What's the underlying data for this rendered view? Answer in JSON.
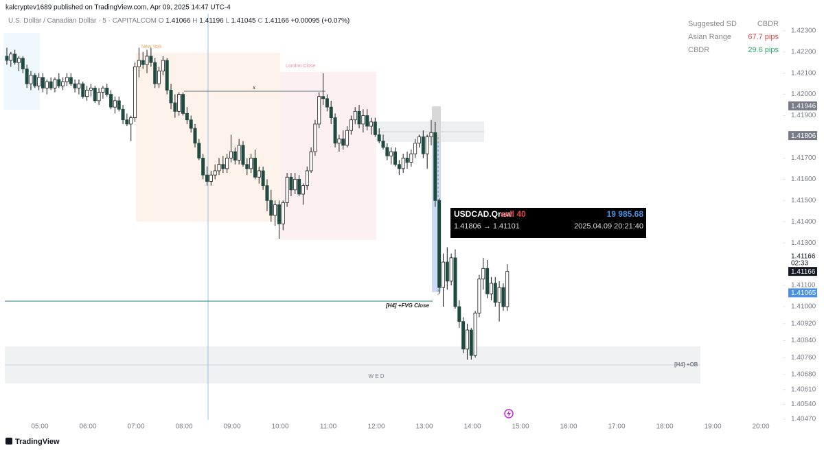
{
  "header": {
    "publisher": "kalcryptev1689 published on TradingView.com, Apr 09, 2025 14:47 UTC-4",
    "symbol": "U.S. Dollar / Canadian Dollar · 5 · CAPITALCOM",
    "ohlc": [
      [
        "O",
        "1.41066"
      ],
      [
        "H",
        "1.41196"
      ],
      [
        "L",
        "1.41045"
      ],
      [
        "C",
        "1.41166"
      ]
    ],
    "change": "+0.00095 (+0.07%)"
  },
  "table": {
    "rows": [
      [
        "Suggested SD",
        "CBDR"
      ],
      [
        "Asian Range",
        "67.7 pips"
      ],
      [
        "CBDR",
        "29.6 pips"
      ]
    ]
  },
  "sessions": [
    "New York",
    "London Close"
  ],
  "annotations": {
    "level": "x",
    "fvg": "[H4] +FVG Close",
    "ob": "[H4] +OB",
    "day": "W E D"
  },
  "trade": {
    "symbol": "USDCAD.Qraw",
    "side": "sell 40",
    "profit": "19 985.68",
    "prices": "1.41806 → 1.41101",
    "time": "2025.04.09 20:21:40"
  },
  "footer": "TradingView",
  "chart_data": {
    "type": "candlestick",
    "bull_color": "#ffffff",
    "bear_color": "#1f4a42",
    "ylim": [
      1.4047,
      1.4238
    ],
    "yticks": [
      {
        "value": 1.423,
        "label": "1.42300"
      },
      {
        "value": 1.422,
        "label": "1.42200"
      },
      {
        "value": 1.421,
        "label": "1.42100"
      },
      {
        "value": 1.42,
        "label": "1.42000"
      },
      {
        "value": 1.419,
        "label": "1.41900"
      },
      {
        "value": 1.417,
        "label": "1.41700"
      },
      {
        "value": 1.416,
        "label": "1.41600"
      },
      {
        "value": 1.415,
        "label": "1.41500"
      },
      {
        "value": 1.414,
        "label": "1.41400"
      },
      {
        "value": 1.413,
        "label": "1.41300"
      },
      {
        "value": 1.411,
        "label": "1.41100"
      },
      {
        "value": 1.41,
        "label": "1.41000"
      },
      {
        "value": 1.4092,
        "label": "1.40920"
      },
      {
        "value": 1.4084,
        "label": "1.40840"
      },
      {
        "value": 1.4076,
        "label": "1.40760"
      },
      {
        "value": 1.4068,
        "label": "1.40680"
      },
      {
        "value": 1.4061,
        "label": "1.40610"
      },
      {
        "value": 1.4054,
        "label": "1.40540"
      },
      {
        "value": 1.4047,
        "label": "1.40470"
      }
    ],
    "xticks": [
      "05:00",
      "06:00",
      "07:00",
      "08:00",
      "09:00",
      "10:00",
      "11:00",
      "12:00",
      "13:00",
      "14:00",
      "15:00",
      "16:00",
      "17:00",
      "18:00",
      "19:00",
      "20:00"
    ],
    "price_labels": [
      {
        "value": 1.41946,
        "color": "#787b86"
      },
      {
        "value": 1.41806,
        "color": "#787b86"
      },
      {
        "value": 1.41166,
        "color": "#131722"
      },
      {
        "value": 1.41065,
        "color": "#4a90e2"
      }
    ],
    "countdown": "02:33",
    "candles": [
      [
        1.4218,
        1.4222,
        1.4214,
        1.4216
      ],
      [
        1.4216,
        1.422,
        1.4213,
        1.4219
      ],
      [
        1.4219,
        1.4221,
        1.4214,
        1.4215
      ],
      [
        1.4215,
        1.4218,
        1.4211,
        1.4217
      ],
      [
        1.4217,
        1.4218,
        1.421,
        1.4212
      ],
      [
        1.4212,
        1.4214,
        1.4203,
        1.4205
      ],
      [
        1.4205,
        1.4211,
        1.4202,
        1.4209
      ],
      [
        1.4209,
        1.421,
        1.4203,
        1.4204
      ],
      [
        1.4204,
        1.421,
        1.4202,
        1.4208
      ],
      [
        1.4208,
        1.421,
        1.4201,
        1.4203
      ],
      [
        1.4203,
        1.4207,
        1.42,
        1.4206
      ],
      [
        1.4206,
        1.4208,
        1.4202,
        1.4203
      ],
      [
        1.4203,
        1.4208,
        1.4201,
        1.4207
      ],
      [
        1.4207,
        1.421,
        1.4203,
        1.4204
      ],
      [
        1.4204,
        1.4208,
        1.4202,
        1.4206
      ],
      [
        1.4206,
        1.421,
        1.4204,
        1.4208
      ],
      [
        1.4208,
        1.421,
        1.4204,
        1.4205
      ],
      [
        1.4205,
        1.4207,
        1.4201,
        1.4203
      ],
      [
        1.4203,
        1.4207,
        1.42,
        1.4205
      ],
      [
        1.4205,
        1.4206,
        1.4198,
        1.4199
      ],
      [
        1.4199,
        1.4204,
        1.4197,
        1.4202
      ],
      [
        1.4202,
        1.4205,
        1.4199,
        1.4203
      ],
      [
        1.4203,
        1.4204,
        1.4196,
        1.4197
      ],
      [
        1.4197,
        1.4203,
        1.4195,
        1.4201
      ],
      [
        1.4201,
        1.4204,
        1.4198,
        1.4203
      ],
      [
        1.4203,
        1.4205,
        1.4199,
        1.42
      ],
      [
        1.42,
        1.4202,
        1.4193,
        1.4194
      ],
      [
        1.4194,
        1.4199,
        1.4191,
        1.4197
      ],
      [
        1.4197,
        1.4199,
        1.4192,
        1.4193
      ],
      [
        1.4193,
        1.4195,
        1.4186,
        1.4188
      ],
      [
        1.4188,
        1.4191,
        1.4185,
        1.4186
      ],
      [
        1.4186,
        1.419,
        1.4178,
        1.4189
      ],
      [
        1.4189,
        1.4215,
        1.4187,
        1.4213
      ],
      [
        1.4213,
        1.4222,
        1.4208,
        1.4216
      ],
      [
        1.4216,
        1.422,
        1.4212,
        1.4214
      ],
      [
        1.4214,
        1.4221,
        1.421,
        1.4218
      ],
      [
        1.4218,
        1.4222,
        1.4213,
        1.4215
      ],
      [
        1.4215,
        1.4217,
        1.4203,
        1.4205
      ],
      [
        1.4205,
        1.4213,
        1.4203,
        1.4211
      ],
      [
        1.4211,
        1.4218,
        1.4209,
        1.4216
      ],
      [
        1.4216,
        1.4217,
        1.42,
        1.4202
      ],
      [
        1.4202,
        1.4205,
        1.4193,
        1.4196
      ],
      [
        1.4196,
        1.42,
        1.4189,
        1.4192
      ],
      [
        1.4192,
        1.4201,
        1.419,
        1.42
      ],
      [
        1.42,
        1.4201,
        1.419,
        1.4191
      ],
      [
        1.4191,
        1.4194,
        1.4186,
        1.4188
      ],
      [
        1.4188,
        1.419,
        1.4182,
        1.4184
      ],
      [
        1.4184,
        1.4186,
        1.4175,
        1.4177
      ],
      [
        1.4177,
        1.4179,
        1.4169,
        1.417
      ],
      [
        1.417,
        1.4172,
        1.416,
        1.4162
      ],
      [
        1.4162,
        1.4166,
        1.4157,
        1.4159
      ],
      [
        1.4159,
        1.4164,
        1.4157,
        1.4162
      ],
      [
        1.4162,
        1.4167,
        1.416,
        1.4164
      ],
      [
        1.4164,
        1.417,
        1.4162,
        1.4167
      ],
      [
        1.4167,
        1.4171,
        1.4163,
        1.4165
      ],
      [
        1.4165,
        1.4172,
        1.4163,
        1.417
      ],
      [
        1.417,
        1.4181,
        1.4168,
        1.4173
      ],
      [
        1.4173,
        1.4175,
        1.4167,
        1.4169
      ],
      [
        1.4169,
        1.4179,
        1.4167,
        1.4176
      ],
      [
        1.4176,
        1.4178,
        1.4166,
        1.4167
      ],
      [
        1.4167,
        1.417,
        1.4162,
        1.4165
      ],
      [
        1.4165,
        1.4172,
        1.4163,
        1.417
      ],
      [
        1.417,
        1.4174,
        1.416,
        1.4161
      ],
      [
        1.4161,
        1.4166,
        1.4158,
        1.4164
      ],
      [
        1.4164,
        1.4166,
        1.4155,
        1.4157
      ],
      [
        1.4157,
        1.416,
        1.4145,
        1.415
      ],
      [
        1.415,
        1.4155,
        1.414,
        1.4143
      ],
      [
        1.4143,
        1.415,
        1.4138,
        1.4148
      ],
      [
        1.4148,
        1.415,
        1.4132,
        1.4139
      ],
      [
        1.4139,
        1.415,
        1.4136,
        1.4149
      ],
      [
        1.4149,
        1.4163,
        1.4147,
        1.4161
      ],
      [
        1.4161,
        1.4163,
        1.4152,
        1.4155
      ],
      [
        1.4155,
        1.4163,
        1.4153,
        1.416
      ],
      [
        1.416,
        1.4162,
        1.4152,
        1.4153
      ],
      [
        1.4153,
        1.4158,
        1.4148,
        1.4157
      ],
      [
        1.4157,
        1.4166,
        1.4155,
        1.4164
      ],
      [
        1.4164,
        1.4175,
        1.4163,
        1.4173
      ],
      [
        1.4173,
        1.4188,
        1.4171,
        1.4186
      ],
      [
        1.4186,
        1.4201,
        1.4184,
        1.4199
      ],
      [
        1.4199,
        1.421,
        1.4195,
        1.4198
      ],
      [
        1.4198,
        1.42,
        1.4192,
        1.4194
      ],
      [
        1.4194,
        1.4197,
        1.4186,
        1.4189
      ],
      [
        1.4189,
        1.4191,
        1.4175,
        1.4177
      ],
      [
        1.4177,
        1.4181,
        1.4173,
        1.4179
      ],
      [
        1.4179,
        1.4183,
        1.4174,
        1.4176
      ],
      [
        1.4176,
        1.4185,
        1.4175,
        1.4183
      ],
      [
        1.4183,
        1.419,
        1.4181,
        1.4188
      ],
      [
        1.4188,
        1.4194,
        1.4186,
        1.4192
      ],
      [
        1.4192,
        1.4195,
        1.4184,
        1.4186
      ],
      [
        1.4186,
        1.4193,
        1.4182,
        1.419
      ],
      [
        1.419,
        1.4193,
        1.4183,
        1.4185
      ],
      [
        1.4185,
        1.4189,
        1.4181,
        1.4187
      ],
      [
        1.4187,
        1.4189,
        1.418,
        1.4181
      ],
      [
        1.4181,
        1.4184,
        1.4177,
        1.4178
      ],
      [
        1.4178,
        1.4181,
        1.4174,
        1.4175
      ],
      [
        1.4175,
        1.4177,
        1.4169,
        1.4171
      ],
      [
        1.4171,
        1.4175,
        1.4167,
        1.4173
      ],
      [
        1.4173,
        1.4175,
        1.4166,
        1.4167
      ],
      [
        1.4167,
        1.4169,
        1.4162,
        1.4165
      ],
      [
        1.4165,
        1.4172,
        1.4163,
        1.417
      ],
      [
        1.417,
        1.4173,
        1.4165,
        1.4168
      ],
      [
        1.4168,
        1.4174,
        1.4166,
        1.4172
      ],
      [
        1.4172,
        1.4179,
        1.417,
        1.4177
      ],
      [
        1.4177,
        1.4181,
        1.4175,
        1.418
      ],
      [
        1.418,
        1.4183,
        1.417,
        1.4172
      ],
      [
        1.4172,
        1.4181,
        1.4165,
        1.418
      ],
      [
        1.418,
        1.4188,
        1.4176,
        1.4182
      ],
      [
        1.4182,
        1.4187,
        1.4147,
        1.415
      ],
      [
        1.415,
        1.4151,
        1.4106,
        1.4109
      ],
      [
        1.4109,
        1.4125,
        1.41,
        1.4121
      ],
      [
        1.4121,
        1.4128,
        1.4108,
        1.4112
      ],
      [
        1.4112,
        1.4125,
        1.411,
        1.4123
      ],
      [
        1.4123,
        1.4127,
        1.4099,
        1.41
      ],
      [
        1.41,
        1.4103,
        1.409,
        1.4093
      ],
      [
        1.4093,
        1.4095,
        1.4078,
        1.408
      ],
      [
        1.408,
        1.4092,
        1.4075,
        1.4089
      ],
      [
        1.4089,
        1.409,
        1.4075,
        1.4077
      ],
      [
        1.4077,
        1.4098,
        1.4076,
        1.4097
      ],
      [
        1.4097,
        1.4115,
        1.4095,
        1.4113
      ],
      [
        1.4113,
        1.4123,
        1.4108,
        1.4118
      ],
      [
        1.4118,
        1.4122,
        1.4104,
        1.4106
      ],
      [
        1.4106,
        1.4114,
        1.4103,
        1.4111
      ],
      [
        1.4111,
        1.4114,
        1.41,
        1.4102
      ],
      [
        1.4102,
        1.4112,
        1.4093,
        1.4109
      ],
      [
        1.4109,
        1.4111,
        1.4098,
        1.41
      ],
      [
        1.41,
        1.412,
        1.4098,
        1.41166
      ]
    ]
  }
}
